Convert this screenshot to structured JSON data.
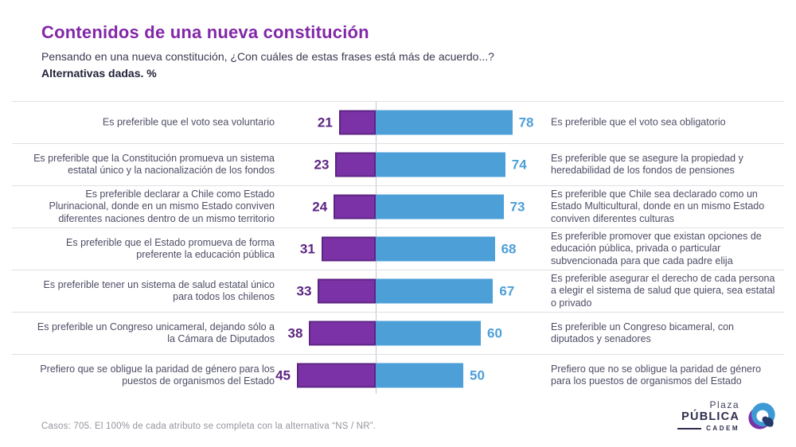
{
  "header": {
    "title": "Contenidos de una nueva constitución",
    "subtitle": "Pensando en una nueva constitución, ¿Con cuáles de estas frases está más de acuerdo...?",
    "subtitle2": "Alternativas dadas. %"
  },
  "chart_data": {
    "type": "bar",
    "variant": "diverging-horizontal",
    "unit": "%",
    "title": "Contenidos de una nueva constitución",
    "subtitle": "Pensando en una nueva constitución, ¿Con cuáles de estas frases está más de acuerdo...? Alternativas dadas. %",
    "axis": {
      "center_value": 0,
      "max_each_side": 100,
      "gridlines": false,
      "center_rule": true
    },
    "colors": {
      "left_bar": "#7b32a6",
      "left_bar_border": "#5c2483",
      "left_value_text": "#5c2483",
      "right_bar": "#4d9fd8",
      "right_value_text": "#3e9ad5",
      "title": "#8227a8"
    },
    "rows": [
      {
        "left_label": "Es preferible que el voto sea voluntario",
        "left_value": 21,
        "right_value": 78,
        "right_label": "Es preferible que el voto sea obligatorio"
      },
      {
        "left_label": "Es preferible que la Constitución promueva un sistema estatal único y la nacionalización de los fondos",
        "left_value": 23,
        "right_value": 74,
        "right_label": "Es preferible que se asegure la propiedad y heredabilidad de los fondos de pensiones"
      },
      {
        "left_label": "Es preferible declarar a Chile como Estado Plurinacional, donde en un mismo Estado conviven diferentes naciones dentro de un mismo territorio",
        "left_value": 24,
        "right_value": 73,
        "right_label": "Es preferible que Chile sea declarado como un Estado Multicultural, donde en un mismo Estado conviven diferentes culturas"
      },
      {
        "left_label": "Es preferible que el Estado promueva de forma preferente la educación pública",
        "left_value": 31,
        "right_value": 68,
        "right_label": "Es preferible promover que existan opciones de educación pública, privada o particular subvencionada para que cada padre elija"
      },
      {
        "left_label": "Es preferible tener un sistema de salud estatal único para todos los chilenos",
        "left_value": 33,
        "right_value": 67,
        "right_label": "Es preferible asegurar el derecho de cada persona a elegir el sistema de salud que quiera, sea estatal o privado"
      },
      {
        "left_label": "Es preferible un Congreso unicameral, dejando sólo a la Cámara de Diputados",
        "left_value": 38,
        "right_value": 60,
        "right_label": "Es preferible un Congreso bicameral, con diputados y senadores"
      },
      {
        "left_label": "Prefiero que se obligue la paridad de género para los puestos de organismos del Estado",
        "left_value": 45,
        "right_value": 50,
        "right_label": "Prefiero que no se obligue la paridad de género para los puestos de organismos del Estado"
      }
    ]
  },
  "footer": {
    "note": "Casos: 705. El 100% de cada atributo se completa con la alternativa “NS / NR”."
  },
  "logo": {
    "line1": "Plaza",
    "line2": "PÚBLICA",
    "line3": "CADEM"
  }
}
